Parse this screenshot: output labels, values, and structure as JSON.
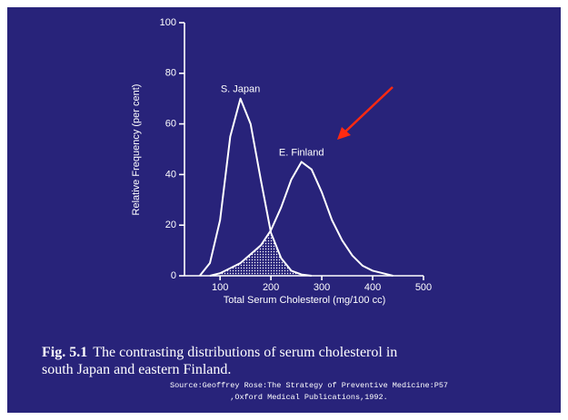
{
  "chart_data": {
    "type": "line",
    "xlabel": "Total Serum Cholesterol (mg/100 cc)",
    "ylabel": "Relative Frequency (per cent)",
    "xlim": [
      30,
      500
    ],
    "xticks": [
      100,
      200,
      300,
      400,
      500
    ],
    "ylim": [
      0,
      100
    ],
    "yticks": [
      0,
      20,
      40,
      60,
      80,
      100
    ],
    "overlap_shaded": true,
    "series": [
      {
        "name": "S. Japan",
        "color": "#ffffff",
        "x": [
          60,
          80,
          100,
          120,
          140,
          160,
          180,
          200,
          220,
          240,
          260,
          280
        ],
        "values": [
          0,
          5,
          22,
          55,
          70,
          60,
          38,
          17,
          7,
          2,
          0.5,
          0
        ]
      },
      {
        "name": "E. Finland",
        "color": "#ffffff",
        "x": [
          80,
          100,
          140,
          180,
          200,
          220,
          240,
          260,
          280,
          300,
          320,
          340,
          360,
          380,
          400,
          420,
          440
        ],
        "values": [
          0,
          1,
          5,
          12,
          18,
          27,
          38,
          45,
          42,
          33,
          22,
          14,
          8,
          4,
          2,
          1,
          0
        ]
      }
    ],
    "caption_label": "Fig. 5.1",
    "caption_lines": [
      "The contrasting distributions of serum cholesterol in",
      "south Japan and eastern Finland."
    ],
    "source_lines": [
      "Source:Geoffrey Rose:The Strategy of Preventive Medicine:P57",
      ",Oxford Medical Publications,1992."
    ]
  }
}
